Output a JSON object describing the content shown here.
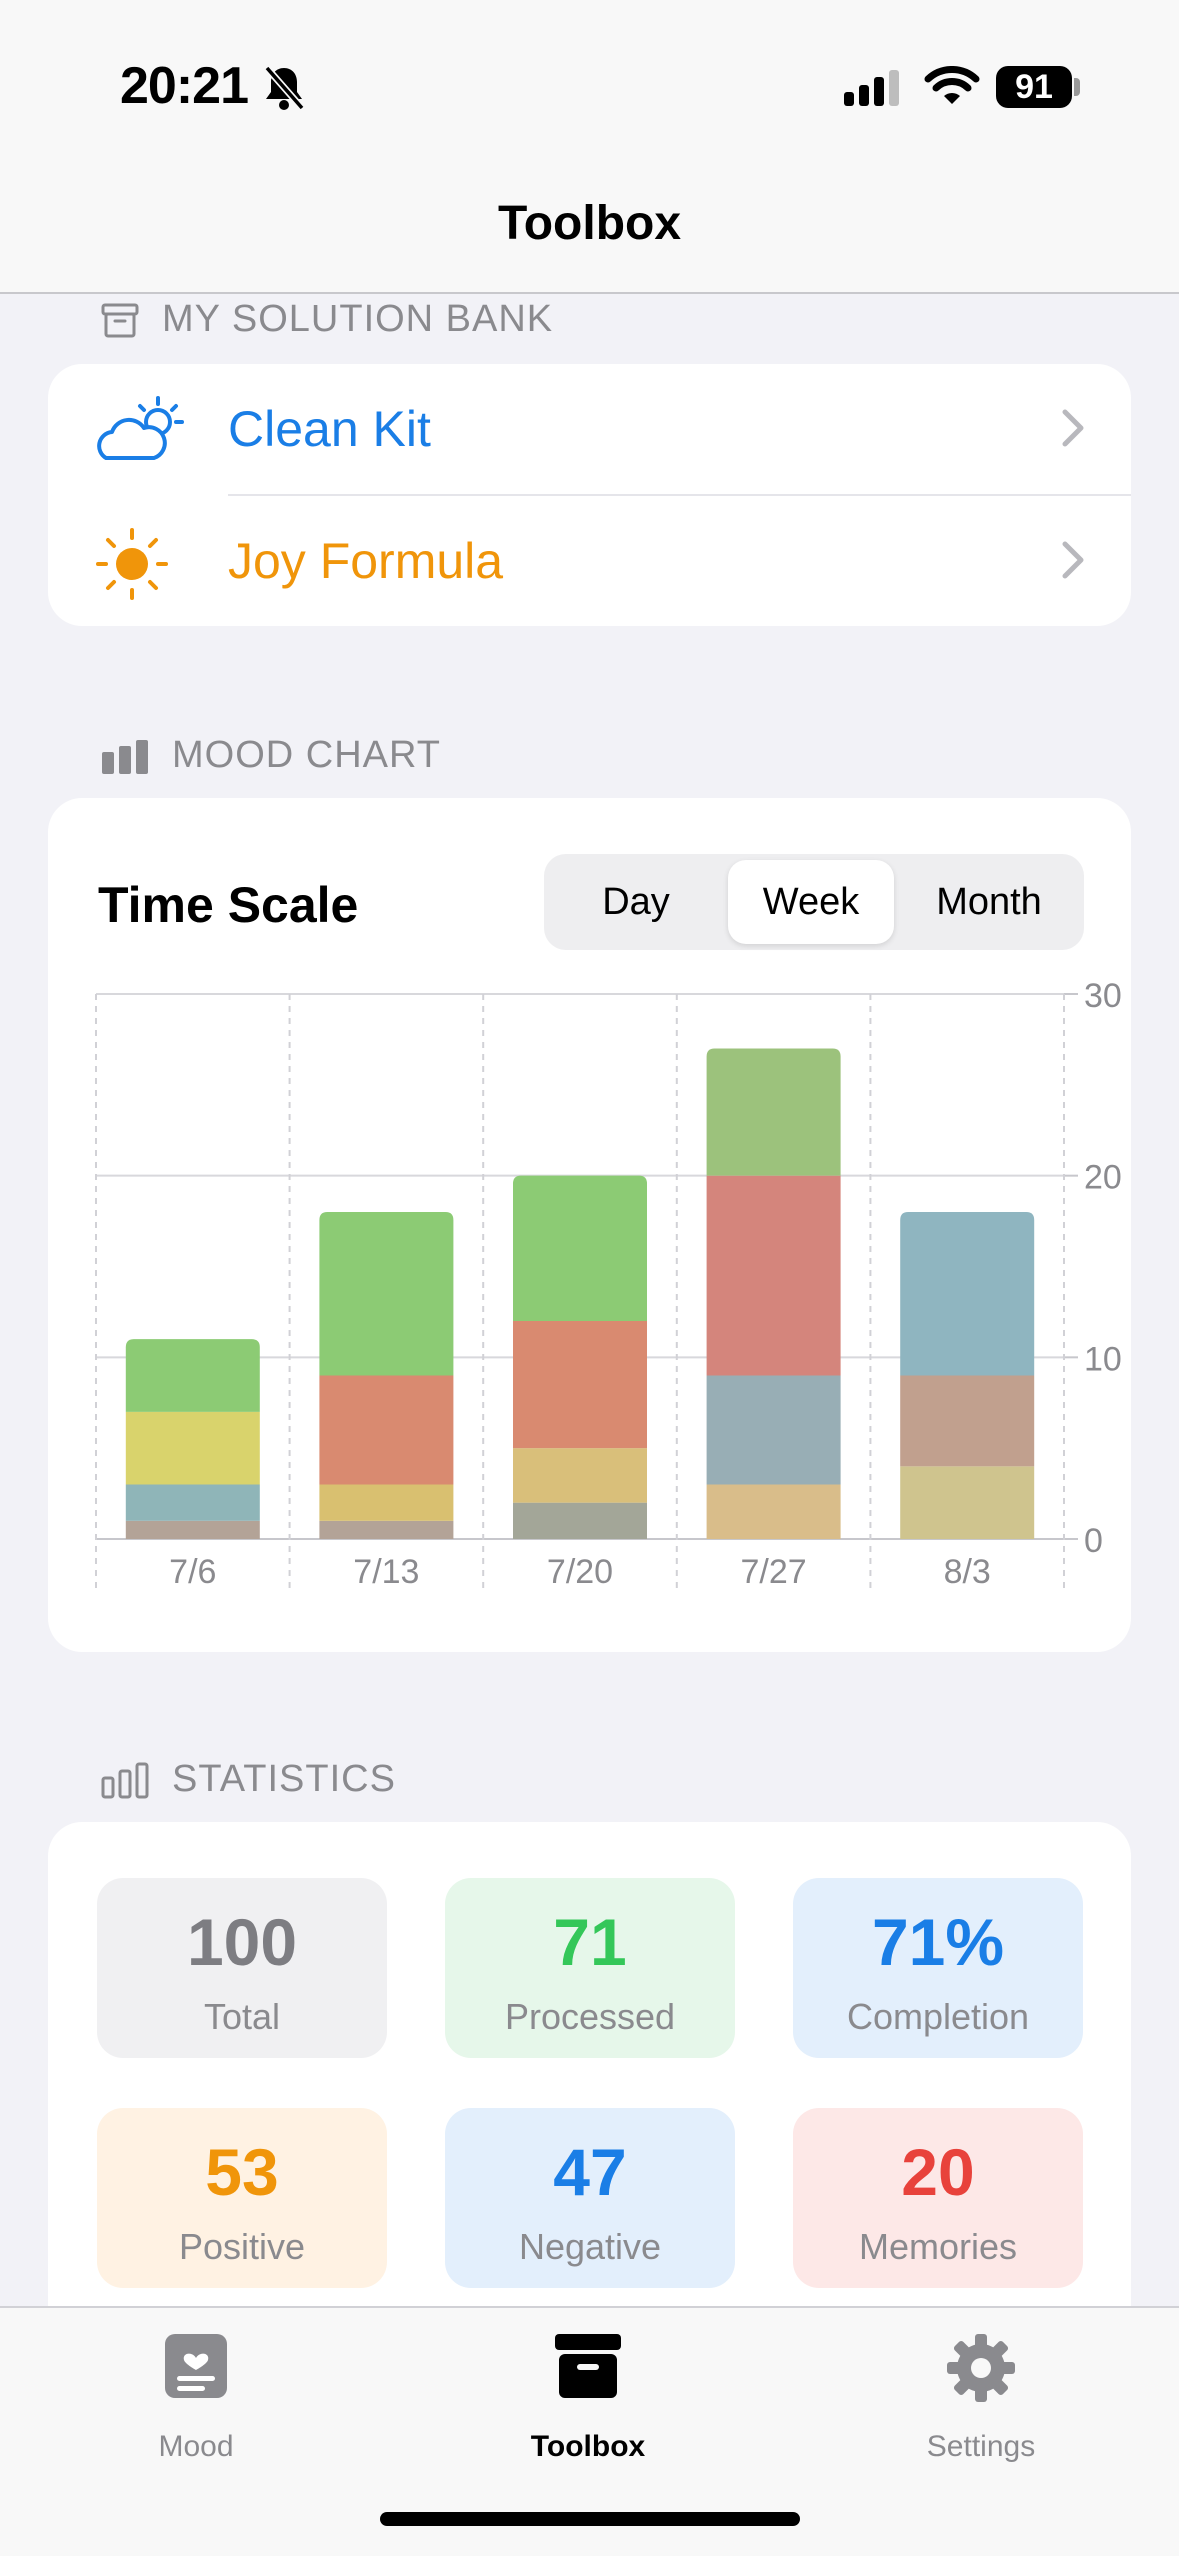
{
  "status_bar": {
    "time": "20:21",
    "battery": "91"
  },
  "header": {
    "title": "Toolbox"
  },
  "solution_bank": {
    "section_title": "MY SOLUTION BANK",
    "items": [
      {
        "label": "Clean Kit",
        "icon": "cloud-sun-icon",
        "color": "#1a7ee6"
      },
      {
        "label": "Joy Formula",
        "icon": "sun-icon",
        "color": "#f0950a"
      }
    ]
  },
  "mood_chart": {
    "section_title": "MOOD CHART",
    "title": "Time Scale",
    "segments": [
      "Day",
      "Week",
      "Month"
    ],
    "selected_segment": "Week"
  },
  "chart_data": {
    "type": "bar",
    "stacked": true,
    "categories": [
      "7/6",
      "7/13",
      "7/20",
      "7/27",
      "8/3"
    ],
    "ylim": [
      0,
      30
    ],
    "yticks": [
      "0",
      "10",
      "20",
      "30"
    ],
    "grid": true,
    "series": [
      {
        "color": "#b3a397",
        "values": [
          1,
          1,
          2,
          3,
          4
        ]
      },
      {
        "color": "#8fb5b8",
        "values": [
          2,
          0,
          0,
          6,
          5
        ]
      },
      {
        "color": "#d9d36c",
        "values": [
          4,
          2,
          3,
          0,
          0
        ]
      },
      {
        "color": "#d98a70",
        "values": [
          0,
          6,
          7,
          11,
          0
        ]
      },
      {
        "color": "#8ccb74",
        "values": [
          4,
          9,
          8,
          7,
          9
        ]
      }
    ],
    "segment_colors": [
      [
        "#b3a397",
        "#8fb5b8",
        "#d9d36c",
        null,
        "#8ccb74"
      ],
      [
        "#b3a397",
        null,
        "#d9c070",
        "#d98a70",
        "#8ccb74"
      ],
      [
        "#a3a698",
        null,
        "#d9bf7a",
        "#d98a70",
        "#8ccb74"
      ],
      [
        "#d9bd8a",
        "#98aeb5",
        null,
        "#d4857c",
        "#9cc27c"
      ],
      [
        "#cfc48e",
        "#c1a08e",
        null,
        null,
        "#8fb5c0"
      ]
    ]
  },
  "statistics": {
    "section_title": "STATISTICS",
    "tiles": [
      {
        "value": "100",
        "label": "Total",
        "color": "#7d7d82",
        "bg": "#f0f0f2"
      },
      {
        "value": "71",
        "label": "Processed",
        "color": "#34c759",
        "bg": "#e6f7ea"
      },
      {
        "value": "71%",
        "label": "Completion",
        "color": "#1a7ee6",
        "bg": "#e3effc"
      },
      {
        "value": "53",
        "label": "Positive",
        "color": "#f0950a",
        "bg": "#fff2e3"
      },
      {
        "value": "47",
        "label": "Negative",
        "color": "#1a7ee6",
        "bg": "#e3effc"
      },
      {
        "value": "20",
        "label": "Memories",
        "color": "#e8423b",
        "bg": "#fde8e7"
      }
    ]
  },
  "tabbar": {
    "tabs": [
      {
        "label": "Mood",
        "icon": "mood-journal-icon"
      },
      {
        "label": "Toolbox",
        "icon": "archive-box-icon"
      },
      {
        "label": "Settings",
        "icon": "gear-icon"
      }
    ],
    "active": "Toolbox"
  }
}
